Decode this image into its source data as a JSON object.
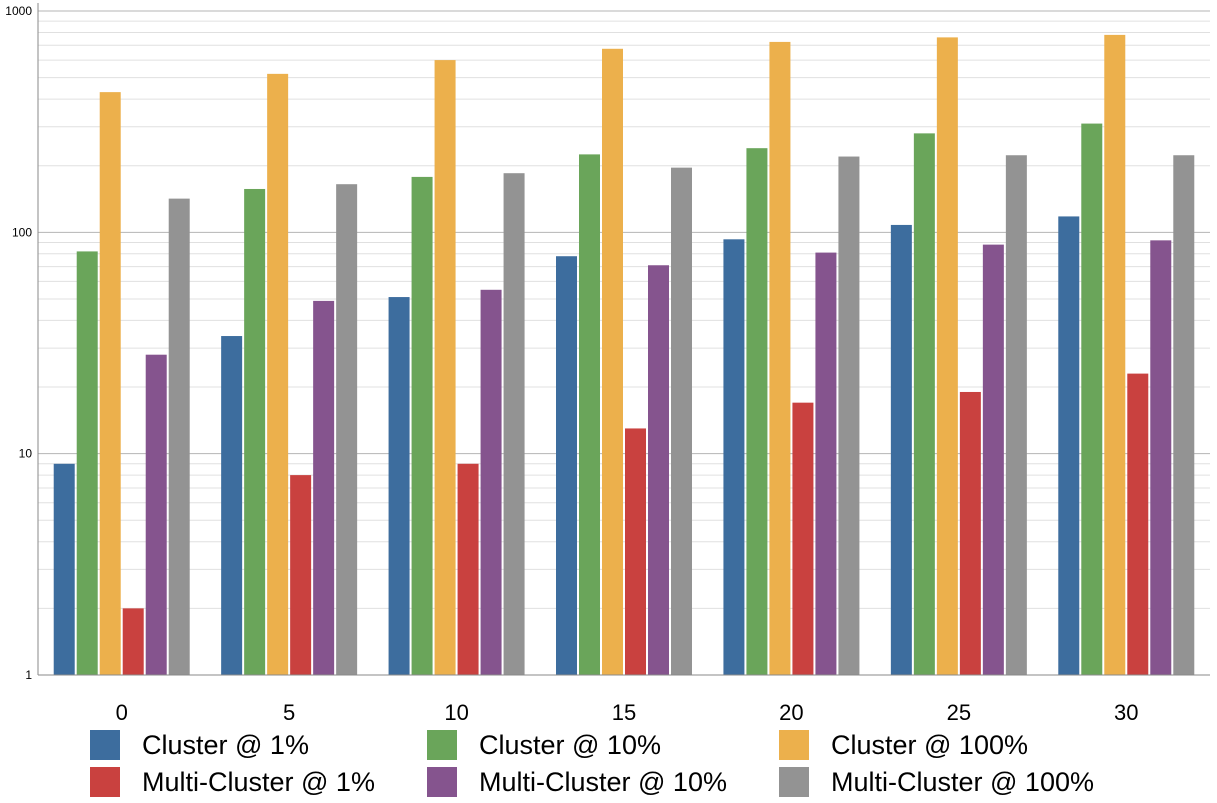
{
  "chart_data": {
    "type": "bar",
    "y_scale": "log",
    "ylim": [
      1,
      1000
    ],
    "y_ticks": [
      "1",
      "10",
      "100",
      "1000"
    ],
    "grid": true,
    "legend_position": "bottom",
    "categories": [
      "0",
      "5",
      "10",
      "15",
      "20",
      "25",
      "30"
    ],
    "series": [
      {
        "name": "Cluster @ 1%",
        "color": "#3d6d9e",
        "values": [
          9,
          34,
          51,
          78,
          93,
          108,
          118
        ]
      },
      {
        "name": "Cluster @ 10%",
        "color": "#6aa55a",
        "values": [
          82,
          157,
          178,
          225,
          240,
          280,
          310
        ]
      },
      {
        "name": "Cluster @ 100%",
        "color": "#ecb04c",
        "values": [
          430,
          520,
          600,
          675,
          725,
          760,
          780
        ]
      },
      {
        "name": "Multi-Cluster @ 1%",
        "color": "#c9413f",
        "values": [
          2,
          8,
          9,
          13,
          17,
          19,
          23
        ]
      },
      {
        "name": "Multi-Cluster @ 10%",
        "color": "#85548e",
        "values": [
          28,
          49,
          55,
          71,
          81,
          88,
          92
        ]
      },
      {
        "name": "Multi-Cluster @ 100%",
        "color": "#939393",
        "values": [
          142,
          165,
          185,
          196,
          220,
          223,
          223
        ]
      }
    ]
  }
}
